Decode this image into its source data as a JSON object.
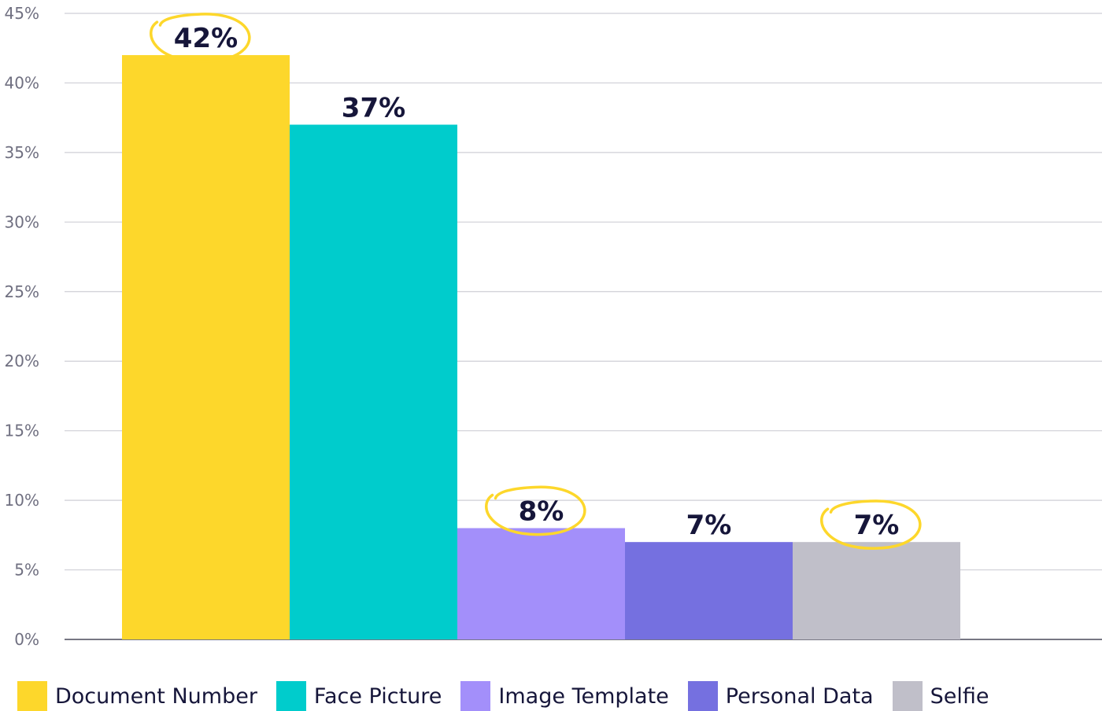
{
  "chart_data": {
    "type": "bar",
    "categories": [
      "Document Number",
      "Face Picture",
      "Image Template",
      "Personal Data",
      "Selfie"
    ],
    "values": [
      42,
      37,
      8,
      7,
      7
    ],
    "value_labels": [
      "42%",
      "37%",
      "8%",
      "7%",
      "7%"
    ],
    "highlighted": [
      true,
      false,
      true,
      false,
      true
    ],
    "colors": [
      "#FDD72B",
      "#00CCCC",
      "#A38FFA",
      "#7570E0",
      "#C0BFC9"
    ],
    "highlight_color": "#FDD72B",
    "ylim": [
      0,
      45
    ],
    "yticks": [
      0,
      5,
      10,
      15,
      20,
      25,
      30,
      35,
      40,
      45
    ],
    "ytick_labels": [
      "0%",
      "5%",
      "10%",
      "15%",
      "20%",
      "25%",
      "30%",
      "35%",
      "40%",
      "45%"
    ],
    "grid": true,
    "legend_position": "bottom",
    "legend": [
      "Document Number",
      "Face Picture",
      "Image Template",
      "Personal Data",
      "Selfie"
    ]
  }
}
